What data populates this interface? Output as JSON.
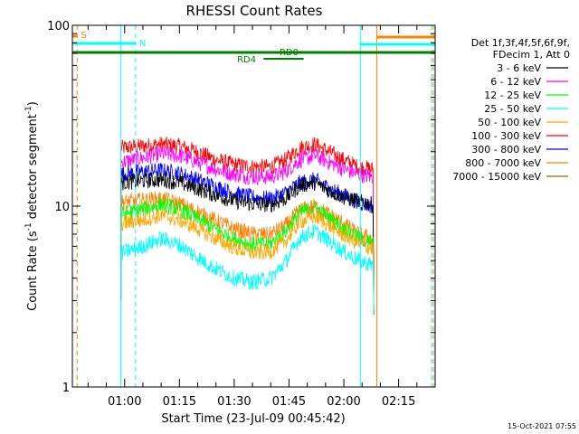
{
  "chart_data": {
    "type": "line",
    "title": "RHESSI Count Rates",
    "xlabel": "Start Time (23-Jul-09 00:45:42)",
    "ylabel": "Count Rate (s",
    "ylabel_sup": "-1",
    "ylabel_tail": " detector segment",
    "ylabel_end": ")",
    "y_scale": "log",
    "ylim": [
      1,
      100
    ],
    "y_ticks": [
      {
        "v": 1,
        "label": "1"
      },
      {
        "v": 10,
        "label": "10"
      },
      {
        "v": 100,
        "label": "100"
      }
    ],
    "xlim": [
      "00:45:42",
      "02:25:00"
    ],
    "x_ticks": [
      "01:00",
      "01:15",
      "01:30",
      "01:45",
      "02:00",
      "02:15"
    ],
    "legend": {
      "position": "right",
      "header": [
        "Det 1f,3f,4f,5f,6f,9f,",
        "FDecim 1, Att 0"
      ],
      "entries": [
        {
          "label": "3 - 6 keV",
          "color": "#000000"
        },
        {
          "label": "6 - 12 keV",
          "color": "#ff00ff"
        },
        {
          "label": "12 - 25 keV",
          "color": "#00ff00"
        },
        {
          "label": "25 - 50 keV",
          "color": "#00ffff"
        },
        {
          "label": "50 - 100 keV",
          "color": "#ffa500"
        },
        {
          "label": "100 - 300 keV",
          "color": "#ff0000"
        },
        {
          "label": "300 - 800 keV",
          "color": "#0000ff"
        },
        {
          "label": "800 - 7000 keV",
          "color": "#ff8000"
        },
        {
          "label": "7000 - 15000 keV",
          "color": "#a06000"
        }
      ]
    },
    "flags": [
      {
        "label": "S",
        "color": "#ff8000"
      },
      {
        "label": "N",
        "color": "#00ffff"
      },
      {
        "label": "RD0",
        "color": "#008000"
      },
      {
        "label": "RD4",
        "color": "#008000"
      }
    ],
    "series": [
      {
        "color": "#ff0000",
        "x": [
          "00:59",
          "01:05",
          "01:10",
          "01:15",
          "01:20",
          "01:25",
          "01:30",
          "01:35",
          "01:40",
          "01:44",
          "01:48",
          "01:52",
          "01:56",
          "02:00",
          "02:04",
          "02:08"
        ],
        "values": [
          21,
          21.5,
          22,
          21.5,
          20,
          18,
          17,
          16.5,
          16.5,
          18,
          21,
          22,
          20,
          18,
          16.5,
          16
        ]
      },
      {
        "color": "#ff00ff",
        "x": [
          "00:59",
          "01:05",
          "01:10",
          "01:15",
          "01:20",
          "01:25",
          "01:30",
          "01:35",
          "01:40",
          "01:44",
          "01:48",
          "01:52",
          "01:56",
          "02:00",
          "02:04",
          "02:08"
        ],
        "values": [
          17.5,
          18.5,
          19.5,
          19,
          17.5,
          16,
          15,
          14.5,
          14.5,
          15.5,
          18,
          19,
          17.5,
          16,
          15,
          14.5
        ]
      },
      {
        "color": "#0000ff",
        "x": [
          "00:59",
          "01:05",
          "01:10",
          "01:15",
          "01:20",
          "01:25",
          "01:30",
          "01:35",
          "01:40",
          "01:44",
          "01:48",
          "01:52",
          "01:56",
          "02:00",
          "02:04",
          "02:08"
        ],
        "values": [
          15,
          15.5,
          15.8,
          15.2,
          14,
          12.8,
          11.8,
          11.2,
          11,
          11.8,
          13.5,
          14,
          12.5,
          11.5,
          10.5,
          10
        ]
      },
      {
        "color": "#000000",
        "x": [
          "00:59",
          "01:05",
          "01:10",
          "01:15",
          "01:20",
          "01:25",
          "01:30",
          "01:35",
          "01:40",
          "01:44",
          "01:48",
          "01:52",
          "01:56",
          "02:00",
          "02:04",
          "02:08"
        ],
        "values": [
          13.5,
          13.8,
          14,
          13.5,
          12.5,
          11.5,
          10.7,
          10.3,
          10.2,
          11,
          13,
          13.5,
          12.2,
          11.2,
          10.6,
          10.2
        ]
      },
      {
        "color": "#ff8000",
        "x": [
          "00:59",
          "01:05",
          "01:10",
          "01:15",
          "01:20",
          "01:25",
          "01:30",
          "01:35",
          "01:40",
          "01:44",
          "01:48",
          "01:52",
          "01:56",
          "02:00",
          "02:04",
          "02:08"
        ],
        "values": [
          10.5,
          10.8,
          11,
          10.3,
          9.3,
          8.3,
          7.5,
          7,
          7,
          7.8,
          9.5,
          10,
          9,
          8,
          7,
          6.6
        ]
      },
      {
        "color": "#00ff00",
        "x": [
          "00:59",
          "01:05",
          "01:10",
          "01:15",
          "01:20",
          "01:25",
          "01:30",
          "01:35",
          "01:40",
          "01:44",
          "01:48",
          "01:52",
          "01:56",
          "02:00",
          "02:04",
          "02:08"
        ],
        "values": [
          9,
          9.6,
          10.2,
          9.6,
          8.5,
          7.4,
          6.6,
          6.1,
          6.2,
          7.2,
          9.2,
          9.8,
          8.6,
          7.5,
          6.7,
          6.2
        ]
      },
      {
        "color": "#ffa500",
        "x": [
          "00:59",
          "01:05",
          "01:10",
          "01:15",
          "01:20",
          "01:25",
          "01:30",
          "01:35",
          "01:40",
          "01:44",
          "01:48",
          "01:52",
          "01:56",
          "02:00",
          "02:04",
          "02:08"
        ],
        "values": [
          8,
          8.4,
          8.9,
          8.4,
          7.5,
          6.6,
          5.9,
          5.5,
          5.6,
          6.4,
          8.2,
          8.8,
          7.8,
          6.9,
          6.2,
          5.8
        ]
      },
      {
        "color": "#00ffff",
        "x": [
          "00:59",
          "01:05",
          "01:10",
          "01:15",
          "01:20",
          "01:25",
          "01:30",
          "01:35",
          "01:40",
          "01:44",
          "01:48",
          "01:52",
          "01:56",
          "02:00",
          "02:04",
          "02:08"
        ],
        "values": [
          5.5,
          6,
          6.6,
          6.1,
          5.2,
          4.5,
          4,
          3.8,
          4,
          4.9,
          6.7,
          7.3,
          6.4,
          5.6,
          5,
          4.7
        ]
      }
    ],
    "timestamp": "15-Oct-2021 07:55"
  }
}
